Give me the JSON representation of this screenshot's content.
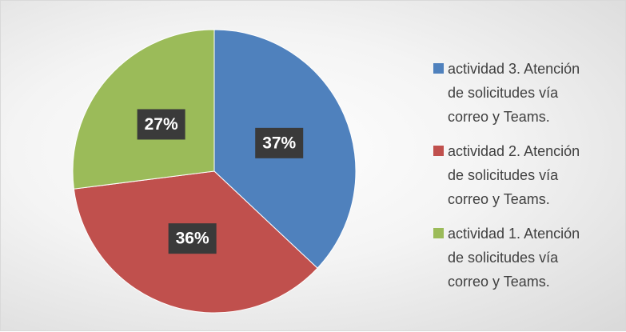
{
  "chart_data": {
    "type": "pie",
    "categories": [
      "actividad 3. Atención de solicitudes vía correo y Teams.",
      "actividad 2. Atención de solicitudes vía correo y Teams.",
      "actividad 1. Atención de solicitudes vía correo y Teams."
    ],
    "values": [
      37,
      36,
      27
    ],
    "value_labels": [
      "37%",
      "36%",
      "27%"
    ],
    "colors": [
      "#4f81bd",
      "#c0504d",
      "#9bbb59"
    ],
    "legend": "right"
  }
}
